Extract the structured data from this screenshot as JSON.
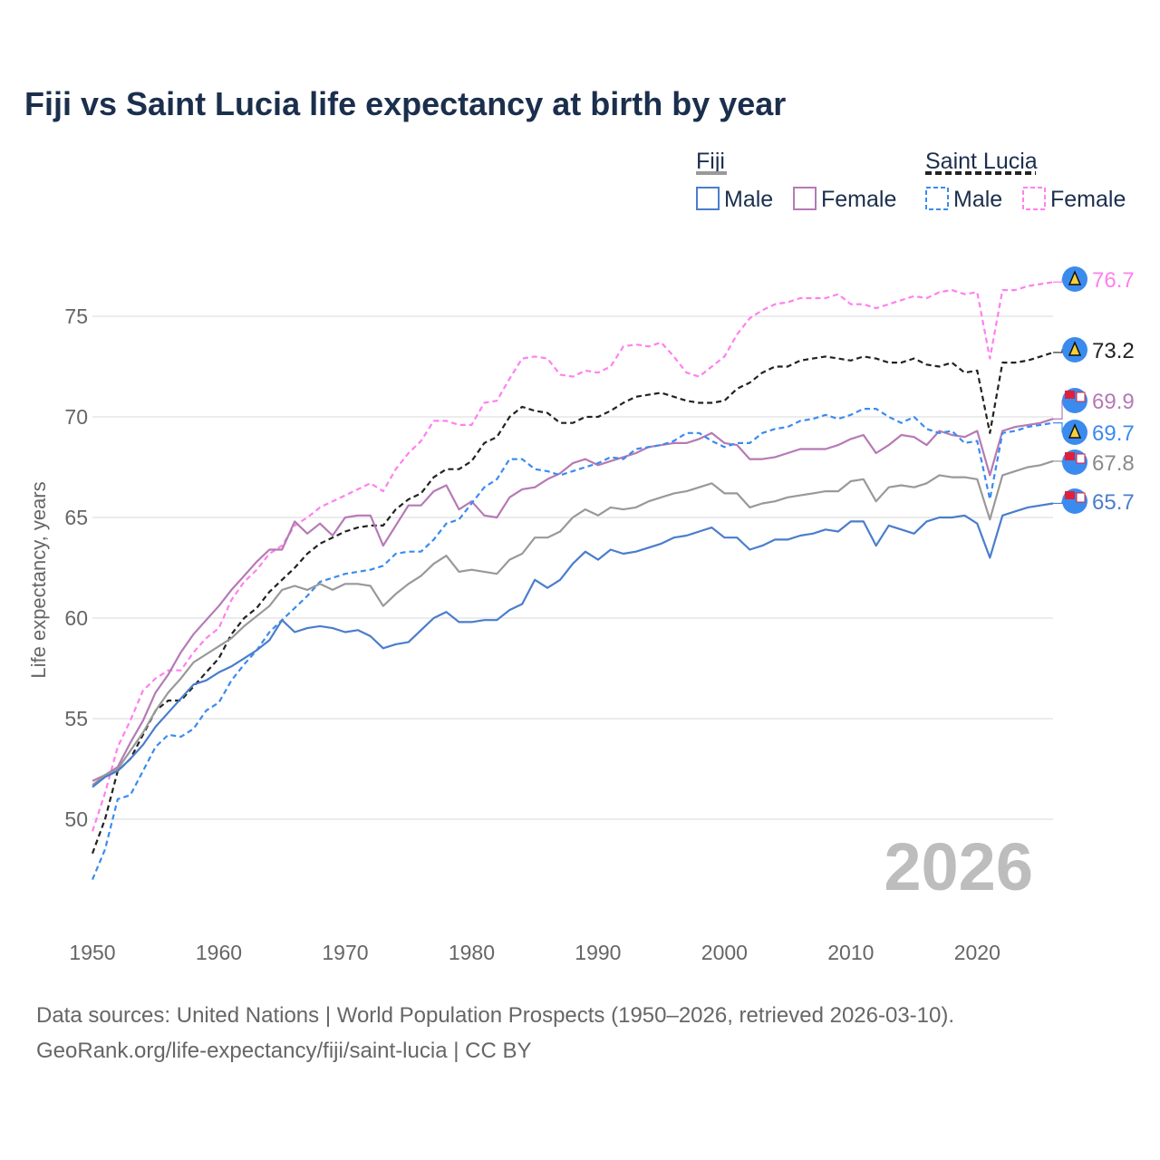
{
  "chart_data": {
    "type": "line",
    "title": "Fiji vs Saint Lucia life expectancy at birth by year",
    "xlabel": "",
    "ylabel": "Life expectancy, years",
    "xlim": [
      1950,
      2026
    ],
    "ylim": [
      46.5,
      78
    ],
    "x_ticks": [
      1950,
      1960,
      1970,
      1980,
      1990,
      2000,
      2010,
      2020
    ],
    "y_ticks": [
      50,
      55,
      60,
      65,
      70,
      75
    ],
    "grid": true,
    "year_watermark": "2026",
    "legend": {
      "groups": [
        {
          "label": "Fiji",
          "items": [
            "Male",
            "Female"
          ]
        },
        {
          "label": "Saint Lucia",
          "items": [
            "Male",
            "Female"
          ]
        }
      ],
      "placement": "top-right"
    },
    "x_start": 1950,
    "series": [
      {
        "name": "Saint Lucia Female",
        "country": "Saint Lucia",
        "color": "#ff80ee",
        "dashed": true,
        "end_label": "76.7",
        "values": [
          49.4,
          51.3,
          53.6,
          54.9,
          56.4,
          57.0,
          57.4,
          57.4,
          58.3,
          59.0,
          59.5,
          60.9,
          61.8,
          62.4,
          63.2,
          63.6,
          64.6,
          65.0,
          65.5,
          65.8,
          66.1,
          66.4,
          66.7,
          66.3,
          67.4,
          68.2,
          68.8,
          69.8,
          69.8,
          69.6,
          69.6,
          70.7,
          70.8,
          71.9,
          72.9,
          73.0,
          72.9,
          72.1,
          72.0,
          72.3,
          72.2,
          72.5,
          73.5,
          73.6,
          73.5,
          73.7,
          73.0,
          72.2,
          72.0,
          72.5,
          73.0,
          74.1,
          74.9,
          75.3,
          75.6,
          75.7,
          75.9,
          75.9,
          75.9,
          76.1,
          75.6,
          75.6,
          75.4,
          75.6,
          75.8,
          76.0,
          75.9,
          76.2,
          76.3,
          76.1,
          76.2,
          72.9,
          76.3,
          76.3,
          76.5,
          76.6,
          76.7
        ]
      },
      {
        "name": "Saint Lucia",
        "country": "Saint Lucia",
        "color": "#222222",
        "dashed": true,
        "end_label": "73.2",
        "values": [
          48.3,
          50.0,
          52.4,
          53.0,
          54.2,
          55.4,
          55.9,
          55.9,
          56.6,
          57.3,
          58.0,
          59.2,
          60.0,
          60.5,
          61.3,
          61.9,
          62.5,
          63.2,
          63.7,
          64.0,
          64.3,
          64.5,
          64.6,
          64.6,
          65.4,
          65.9,
          66.2,
          67.0,
          67.4,
          67.4,
          67.8,
          68.7,
          69.0,
          70.0,
          70.5,
          70.3,
          70.2,
          69.7,
          69.7,
          70.0,
          70.0,
          70.3,
          70.7,
          71.0,
          71.1,
          71.2,
          71.0,
          70.8,
          70.7,
          70.7,
          70.8,
          71.4,
          71.7,
          72.2,
          72.5,
          72.5,
          72.8,
          72.9,
          73.0,
          72.9,
          72.8,
          73.0,
          72.9,
          72.7,
          72.7,
          72.9,
          72.6,
          72.5,
          72.7,
          72.2,
          72.3,
          69.2,
          72.7,
          72.7,
          72.8,
          73.0,
          73.2
        ]
      },
      {
        "name": "Fiji Female",
        "country": "Fiji",
        "color": "#b57ab5",
        "dashed": false,
        "end_label": "69.9",
        "values": [
          51.9,
          52.2,
          52.6,
          53.8,
          54.9,
          56.3,
          57.2,
          58.3,
          59.2,
          59.9,
          60.6,
          61.4,
          62.1,
          62.8,
          63.4,
          63.4,
          64.8,
          64.2,
          64.7,
          64.1,
          65.0,
          65.1,
          65.1,
          63.6,
          64.6,
          65.6,
          65.6,
          66.3,
          66.6,
          65.4,
          65.8,
          65.1,
          65.0,
          66.0,
          66.4,
          66.5,
          66.9,
          67.2,
          67.7,
          67.9,
          67.6,
          67.8,
          68.0,
          68.2,
          68.5,
          68.6,
          68.7,
          68.7,
          68.9,
          69.2,
          68.7,
          68.6,
          67.9,
          67.9,
          68.0,
          68.2,
          68.4,
          68.4,
          68.4,
          68.6,
          68.9,
          69.1,
          68.2,
          68.6,
          69.1,
          69.0,
          68.6,
          69.3,
          69.1,
          69.0,
          69.3,
          67.1,
          69.3,
          69.5,
          69.6,
          69.7,
          69.9
        ]
      },
      {
        "name": "Saint Lucia Male",
        "country": "Saint Lucia",
        "color": "#3b8bef",
        "dashed": true,
        "end_label": "69.7",
        "values": [
          47.0,
          48.5,
          51.0,
          51.2,
          52.4,
          53.6,
          54.2,
          54.1,
          54.5,
          55.4,
          55.8,
          56.9,
          57.7,
          58.4,
          59.3,
          59.9,
          60.5,
          61.1,
          61.8,
          62.0,
          62.2,
          62.3,
          62.4,
          62.6,
          63.2,
          63.3,
          63.3,
          63.9,
          64.7,
          64.9,
          65.7,
          66.5,
          66.9,
          67.9,
          67.9,
          67.4,
          67.3,
          67.1,
          67.3,
          67.5,
          67.7,
          68.0,
          67.9,
          68.4,
          68.5,
          68.6,
          68.8,
          69.2,
          69.2,
          68.8,
          68.5,
          68.7,
          68.7,
          69.2,
          69.4,
          69.5,
          69.8,
          69.9,
          70.1,
          69.9,
          70.1,
          70.4,
          70.4,
          70.0,
          69.7,
          70.0,
          69.4,
          69.2,
          69.3,
          68.7,
          68.8,
          65.9,
          69.2,
          69.3,
          69.5,
          69.6,
          69.7
        ]
      },
      {
        "name": "Fiji",
        "country": "Fiji",
        "color": "#999999",
        "dashed": false,
        "end_label": "67.8",
        "values": [
          51.7,
          52.2,
          52.5,
          53.4,
          54.3,
          55.4,
          56.3,
          57.0,
          57.8,
          58.2,
          58.6,
          59.0,
          59.6,
          60.1,
          60.6,
          61.4,
          61.6,
          61.4,
          61.7,
          61.4,
          61.7,
          61.7,
          61.6,
          60.6,
          61.2,
          61.7,
          62.1,
          62.7,
          63.1,
          62.3,
          62.4,
          62.3,
          62.2,
          62.9,
          63.2,
          64.0,
          64.0,
          64.3,
          65.0,
          65.4,
          65.1,
          65.5,
          65.4,
          65.5,
          65.8,
          66.0,
          66.2,
          66.3,
          66.5,
          66.7,
          66.2,
          66.2,
          65.5,
          65.7,
          65.8,
          66.0,
          66.1,
          66.2,
          66.3,
          66.3,
          66.8,
          66.9,
          65.8,
          66.5,
          66.6,
          66.5,
          66.7,
          67.1,
          67.0,
          67.0,
          66.9,
          64.9,
          67.1,
          67.3,
          67.5,
          67.6,
          67.8
        ]
      },
      {
        "name": "Fiji Male",
        "country": "Fiji",
        "color": "#4a7dcc",
        "dashed": false,
        "end_label": "65.7",
        "values": [
          51.6,
          52.1,
          52.4,
          53.0,
          53.7,
          54.6,
          55.3,
          56.0,
          56.7,
          56.9,
          57.3,
          57.6,
          58.0,
          58.4,
          58.9,
          59.9,
          59.3,
          59.5,
          59.6,
          59.5,
          59.3,
          59.4,
          59.1,
          58.5,
          58.7,
          58.8,
          59.4,
          60.0,
          60.3,
          59.8,
          59.8,
          59.9,
          59.9,
          60.4,
          60.7,
          61.9,
          61.5,
          61.9,
          62.7,
          63.3,
          62.9,
          63.4,
          63.2,
          63.3,
          63.5,
          63.7,
          64.0,
          64.1,
          64.3,
          64.5,
          64.0,
          64.0,
          63.4,
          63.6,
          63.9,
          63.9,
          64.1,
          64.2,
          64.4,
          64.3,
          64.8,
          64.8,
          63.6,
          64.6,
          64.4,
          64.2,
          64.8,
          65.0,
          65.0,
          65.1,
          64.7,
          63.0,
          65.1,
          65.3,
          65.5,
          65.6,
          65.7
        ]
      }
    ]
  },
  "sources": {
    "line1": "Data sources: United Nations | World Population Prospects (1950–2026, retrieved 2026-03-10).",
    "line2": "GeoRank.org/life-expectancy/fiji/saint-lucia | CC BY"
  }
}
